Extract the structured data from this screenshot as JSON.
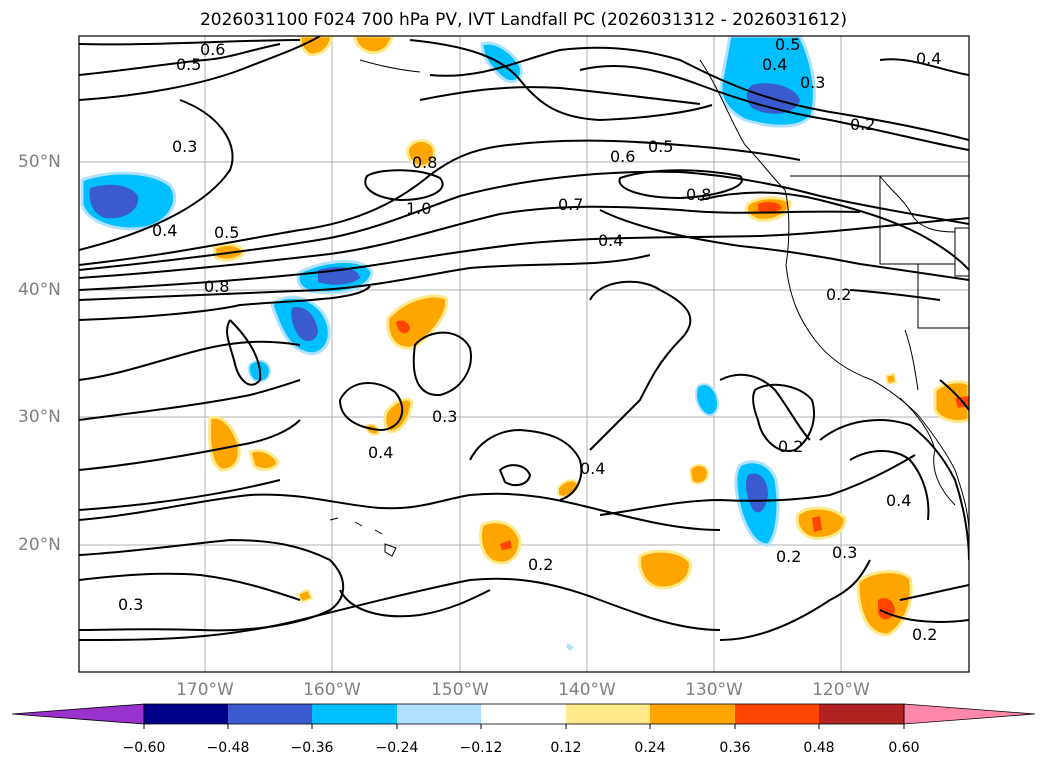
{
  "title": "2026031100 F024 700 hPa PV, IVT Landfall PC (2026031312 - 2026031612)",
  "lat_labels": [
    "50°N",
    "40°N",
    "30°N",
    "20°N"
  ],
  "lon_labels": [
    "170°W",
    "160°W",
    "150°W",
    "140°W",
    "130°W",
    "120°W"
  ],
  "contour_labels": [
    "0.6",
    "0.5",
    "0.3",
    "0.4",
    "0.5",
    "0.8",
    "1.0",
    "0.7",
    "0.4",
    "0.6",
    "0.5",
    "0.8",
    "0.5",
    "0.4",
    "0.3",
    "0.2",
    "0.4",
    "0.2",
    "0.3",
    "0.4",
    "0.4",
    "0.2",
    "0.2",
    "0.2",
    "0.3",
    "0.4",
    "0.2",
    "0.3",
    "0.8"
  ],
  "colorbar": {
    "tick_labels": [
      "−0.60",
      "−0.48",
      "−0.36",
      "−0.24",
      "−0.12",
      "0.12",
      "0.24",
      "0.36",
      "0.48",
      "0.60"
    ],
    "colors": [
      "#9932cc",
      "#9932cc",
      "#00008b",
      "#3a5bcd",
      "#00bfff",
      "#b0e2ff",
      "#ffffff",
      "#ffe98a",
      "#ffa500",
      "#ff4500",
      "#b22222",
      "#ff88aa",
      "#ff88aa"
    ]
  }
}
